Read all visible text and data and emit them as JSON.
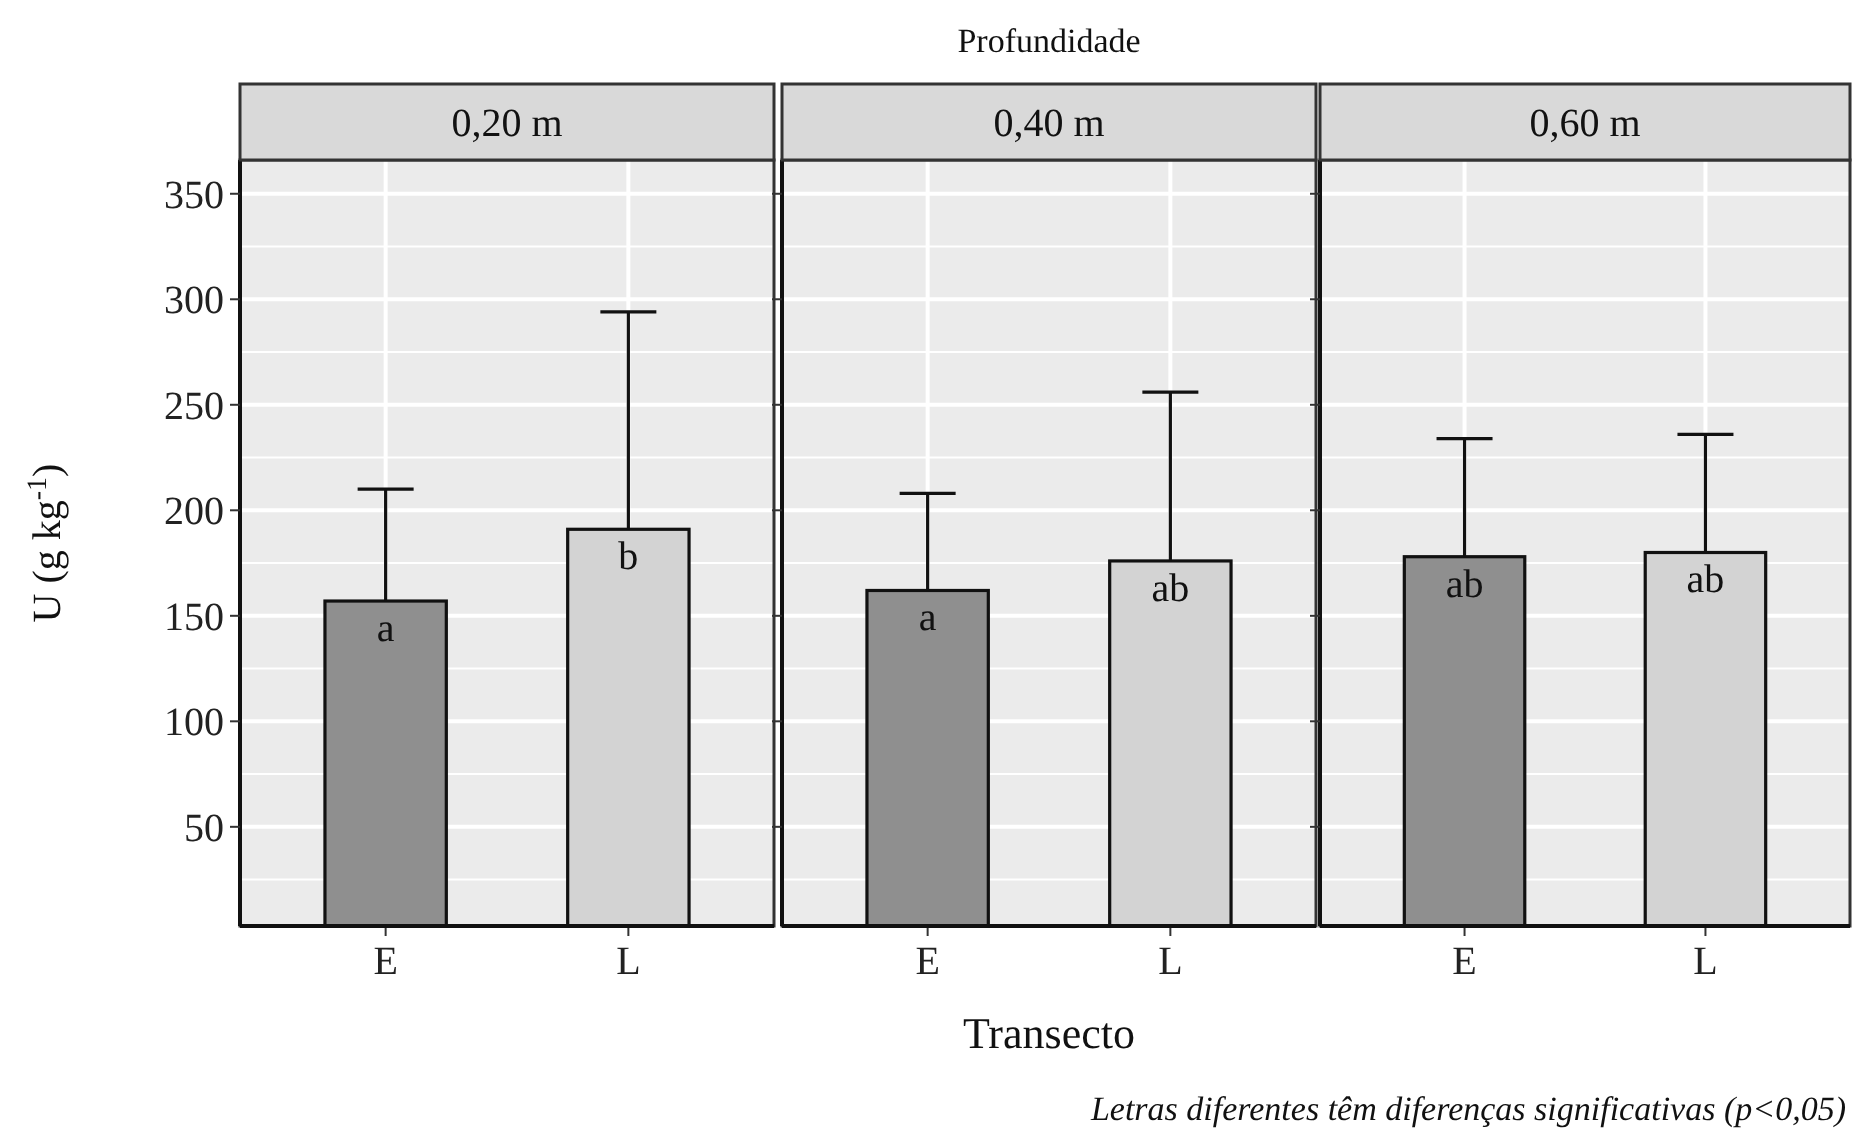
{
  "chart_data": [
    {
      "type": "bar",
      "title": "0,20 m",
      "ylabel": "U (g kg$^{-1}$)",
      "categories": [
        "E",
        "L"
      ],
      "values": [
        157,
        191
      ],
      "colors": [
        "#8f8f8f",
        "#d3d3d3"
      ],
      "errors": [
        [
          157,
          210
        ],
        [
          191,
          294
        ]
      ],
      "value_labels": [
        "a",
        "b"
      ],
      "ylim": [
        3,
        366
      ],
      "yticks": [
        50,
        100,
        150,
        200,
        250,
        300,
        350
      ],
      "grid": true
    },
    {
      "type": "bar",
      "title": "0,40 m",
      "xlabel": "Transecto",
      "annotations": [
        "Profundidade"
      ],
      "categories": [
        "E",
        "L"
      ],
      "values": [
        162,
        176
      ],
      "colors": [
        "#8f8f8f",
        "#d3d3d3"
      ],
      "errors": [
        [
          162,
          208
        ],
        [
          176,
          256
        ]
      ],
      "value_labels": [
        "a",
        "ab"
      ],
      "ylim": [
        3,
        366
      ],
      "yticks": [
        50,
        100,
        150,
        200,
        250,
        300,
        350
      ],
      "grid": true,
      "tick_labels": "x"
    },
    {
      "type": "bar",
      "title": "0,60 m",
      "annotations": [
        "Letras diferentes têm diferenças significativas (p<0,05)"
      ],
      "categories": [
        "E",
        "L"
      ],
      "values": [
        178,
        180
      ],
      "colors": [
        "#8f8f8f",
        "#d3d3d3"
      ],
      "errors": [
        [
          178,
          234
        ],
        [
          180,
          236
        ]
      ],
      "value_labels": [
        "ab",
        "ab"
      ],
      "ylim": [
        3,
        366
      ],
      "yticks": [
        50,
        100,
        150,
        200,
        250,
        300,
        350
      ],
      "grid": true,
      "tick_labels": "x"
    }
  ]
}
